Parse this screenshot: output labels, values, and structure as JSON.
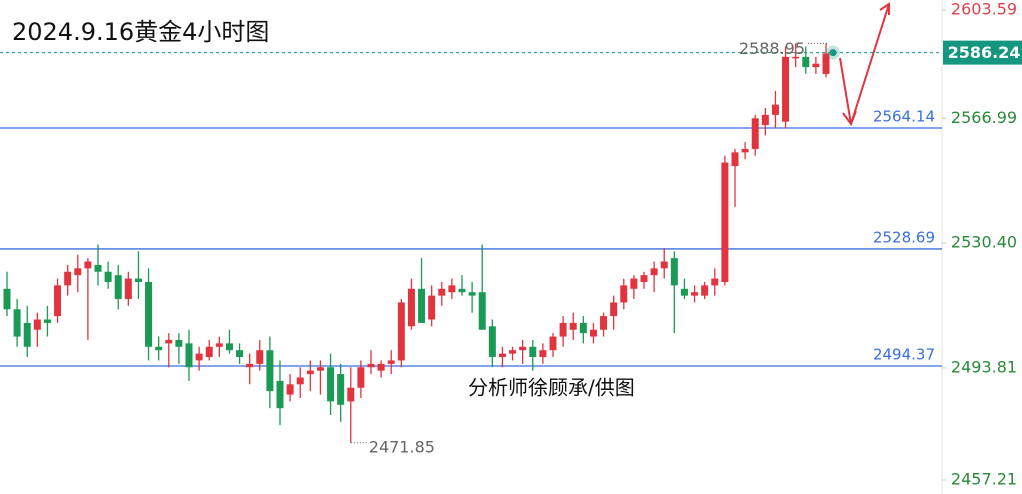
{
  "chart_data": {
    "type": "candlestick",
    "title": "2024.9.16黄金4小时图",
    "watermark": "分析师徐顾承/供图",
    "up_color": "#e0343e",
    "down_color": "#1a9a55",
    "level_color": "#3a6fe0",
    "current_color": "#14967f",
    "ylim": [
      2456.84,
      2601.67
    ],
    "yticks": [
      2603.59,
      2566.99,
      {
        "value": 2530.4,
        "label": "2530.40"
      },
      2493.81,
      2457.21
    ],
    "levels": [
      2564.14,
      2528.69,
      2494.37
    ],
    "high_label": 2588.95,
    "low_label": 2471.85,
    "current": 2586.24,
    "open": [
      2517,
      2511,
      2507,
      2505,
      2508,
      2509,
      2518,
      2521,
      2523,
      2524,
      2522,
      2521,
      2514,
      2520,
      2519,
      2500,
      2501,
      2502,
      2501,
      2496,
      2497,
      2500,
      2501,
      2499,
      2494,
      2495,
      2499,
      2490,
      2486,
      2489,
      2492,
      2493,
      2494,
      2492,
      2484,
      2488,
      2494,
      2493,
      2495,
      2496,
      2506,
      2517,
      2508,
      2515,
      2516,
      2517,
      2516,
      2516,
      2506,
      2497,
      2498,
      2499,
      2500,
      2497,
      2499,
      2503,
      2505,
      2507,
      2503,
      2505,
      2509,
      2513,
      2517,
      2519,
      2521,
      2523,
      2526,
      2517,
      2515,
      2515,
      2518,
      2519,
      2553,
      2557,
      2558,
      2565,
      2568,
      2566,
      2585,
      2585,
      2582,
      2580
    ],
    "high": [
      2522,
      2514,
      2512,
      2510,
      2512,
      2520,
      2524,
      2527,
      2526,
      2530,
      2525,
      2524,
      2522,
      2528,
      2523,
      2503,
      2504,
      2504,
      2505,
      2500,
      2502,
      2503,
      2505,
      2501,
      2498,
      2502,
      2503,
      2496,
      2492,
      2494,
      2496,
      2496,
      2498,
      2495,
      2494,
      2496,
      2499,
      2496,
      2499,
      2514,
      2520,
      2526,
      2518,
      2519,
      2520,
      2521,
      2519,
      2530,
      2508,
      2500,
      2500,
      2502,
      2502,
      2501,
      2504,
      2509,
      2510,
      2509,
      2507,
      2510,
      2515,
      2520,
      2521,
      2522,
      2525,
      2529,
      2528,
      2520,
      2518,
      2519,
      2523,
      2556,
      2558,
      2560,
      2568,
      2570,
      2575,
      2588,
      2588.95,
      2588,
      2585,
      2588.95
    ],
    "low": [
      2509,
      2500,
      2497,
      2500,
      2503,
      2507,
      2515,
      2516,
      2502,
      2518,
      2517,
      2511,
      2512,
      2514,
      2496,
      2496,
      2494,
      2495,
      2490,
      2493,
      2496,
      2497,
      2498,
      2495,
      2489,
      2493,
      2482,
      2477,
      2484,
      2485,
      2487,
      2486,
      2480,
      2478,
      2471.85,
      2485,
      2492,
      2491,
      2492,
      2494,
      2505,
      2507,
      2506,
      2512,
      2514,
      2515,
      2510,
      2505,
      2494,
      2494,
      2496,
      2495,
      2493,
      2495,
      2497,
      2500,
      2502,
      2501,
      2501,
      2503,
      2505,
      2511,
      2514,
      2517,
      2516,
      2520,
      2504,
      2514,
      2513,
      2514,
      2515,
      2518,
      2541,
      2555,
      2556,
      2562,
      2564,
      2564,
      2582,
      2580,
      2580,
      2579
    ],
    "close": [
      2511,
      2503,
      2500,
      2508,
      2507,
      2518,
      2522,
      2523,
      2525,
      2522,
      2519,
      2514,
      2520,
      2519,
      2500,
      2499,
      2502,
      2500,
      2494,
      2498,
      2500,
      2501,
      2499,
      2497,
      2495,
      2499,
      2487,
      2482,
      2489,
      2491,
      2493,
      2494,
      2484,
      2483,
      2488,
      2494,
      2495,
      2495,
      2496,
      2513,
      2517,
      2507,
      2515,
      2517,
      2518,
      2516,
      2515,
      2505,
      2497,
      2498,
      2499,
      2500,
      2497,
      2499,
      2503,
      2507,
      2507,
      2504,
      2505,
      2509,
      2513,
      2518,
      2520,
      2521,
      2523,
      2525,
      2518,
      2515,
      2516,
      2518,
      2520,
      2554,
      2557,
      2558,
      2567,
      2568,
      2571,
      2585,
      2585,
      2582,
      2583,
      2586
    ]
  }
}
